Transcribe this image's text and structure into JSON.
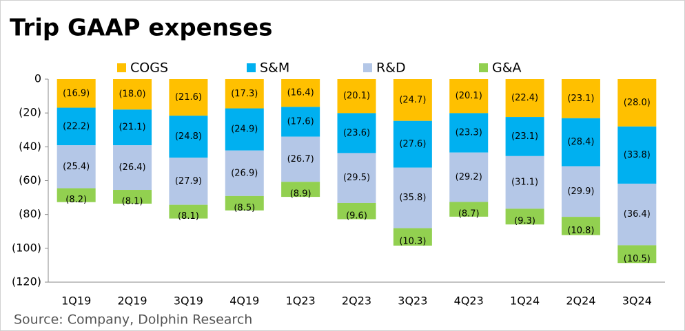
{
  "chart_data": {
    "type": "stacked_bar",
    "title": "Trip GAAP expenses",
    "source": "Source: Company, Dolphin Research",
    "categories": [
      "1Q19",
      "2Q19",
      "3Q19",
      "4Q19",
      "1Q23",
      "2Q23",
      "3Q23",
      "4Q23",
      "1Q24",
      "2Q24",
      "3Q24"
    ],
    "series": [
      {
        "name": "COGS",
        "color": "#FFC000",
        "values": [
          -16.9,
          -18.0,
          -21.6,
          -17.3,
          -16.4,
          -20.1,
          -24.7,
          -20.1,
          -22.4,
          -23.1,
          -28.0
        ],
        "value_labels": [
          "(16.9)",
          "(18.0)",
          "(21.6)",
          "(17.3)",
          "(16.4)",
          "(20.1)",
          "(24.7)",
          "(20.1)",
          "(22.4)",
          "(23.1)",
          "(28.0)"
        ]
      },
      {
        "name": "S&M",
        "color": "#00B0F0",
        "values": [
          -22.2,
          -21.1,
          -24.8,
          -24.9,
          -17.6,
          -23.6,
          -27.6,
          -23.3,
          -23.1,
          -28.4,
          -33.8
        ],
        "value_labels": [
          "(22.2)",
          "(21.1)",
          "(24.8)",
          "(24.9)",
          "(17.6)",
          "(23.6)",
          "(27.6)",
          "(23.3)",
          "(23.1)",
          "(28.4)",
          "(33.8)"
        ]
      },
      {
        "name": "R&D",
        "color": "#B4C7E7",
        "values": [
          -25.4,
          -26.4,
          -27.9,
          -26.9,
          -26.7,
          -29.5,
          -35.8,
          -29.2,
          -31.1,
          -29.9,
          -36.4
        ],
        "value_labels": [
          "(25.4)",
          "(26.4)",
          "(27.9)",
          "(26.9)",
          "(26.7)",
          "(29.5)",
          "(35.8)",
          "(29.2)",
          "(31.1)",
          "(29.9)",
          "(36.4)"
        ]
      },
      {
        "name": "G&A",
        "color": "#92D050",
        "values": [
          -8.2,
          -8.1,
          -8.1,
          -8.5,
          -8.9,
          -9.6,
          -10.3,
          -8.7,
          -9.3,
          -10.8,
          -10.5
        ],
        "value_labels": [
          "(8.2)",
          "(8.1)",
          "(8.1)",
          "(8.5)",
          "(8.9)",
          "(9.6)",
          "(10.3)",
          "(8.7)",
          "(9.3)",
          "(10.8)",
          "(10.5)"
        ]
      }
    ],
    "ylim": [
      -120,
      0
    ],
    "yticks": [
      0,
      {
        "value": -20,
        "label": "(20)"
      },
      {
        "value": -40,
        "label": "(40)"
      },
      {
        "value": -60,
        "label": "(60)"
      },
      {
        "value": -80,
        "label": "(80)"
      },
      {
        "value": -100,
        "label": "(100)"
      },
      {
        "value": -120,
        "label": "(120)"
      }
    ]
  }
}
